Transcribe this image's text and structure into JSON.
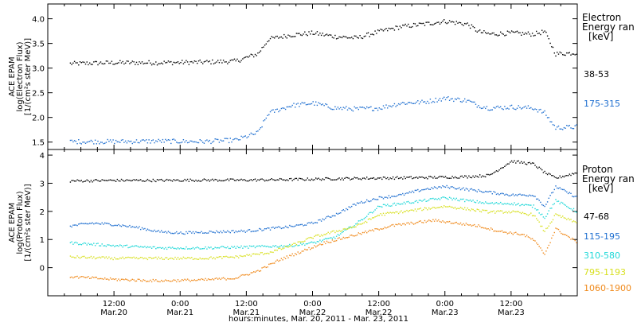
{
  "colors": {
    "black": "#000000",
    "blue": "#1f6fd0",
    "cyan": "#20d8d8",
    "yellow": "#d8e020",
    "orange": "#f08a1c"
  },
  "chart_data": [
    {
      "type": "scatter",
      "panel": "electron",
      "ylabel": [
        "ACE EPAM",
        "log(Electron Flux)",
        "[1/(cm²s ster MeV)]"
      ],
      "ylim": [
        1.35,
        4.3
      ],
      "y_ticks": [
        "1.5",
        "2.0",
        "2.5",
        "3.0",
        "3.5",
        "4.0"
      ],
      "legend_title": [
        "Electron",
        "Energy ran",
        "[keV]"
      ],
      "series": [
        {
          "name": "38-53",
          "color": "#000000",
          "points": [
            [
              -8,
              3.1
            ],
            [
              0,
              3.12
            ],
            [
              8,
              3.12
            ],
            [
              16,
              3.13
            ],
            [
              22,
              3.15
            ],
            [
              26,
              3.3
            ],
            [
              28,
              3.6
            ],
            [
              32,
              3.68
            ],
            [
              36,
              3.72
            ],
            [
              40,
              3.65
            ],
            [
              44,
              3.62
            ],
            [
              48,
              3.75
            ],
            [
              52,
              3.85
            ],
            [
              56,
              3.9
            ],
            [
              60,
              3.96
            ],
            [
              64,
              3.9
            ],
            [
              66,
              3.75
            ],
            [
              68,
              3.7
            ],
            [
              72,
              3.72
            ],
            [
              76,
              3.7
            ],
            [
              78,
              3.75
            ],
            [
              80,
              3.3
            ],
            [
              84,
              3.32
            ],
            [
              88,
              3.33
            ],
            [
              92,
              3.3
            ],
            [
              96,
              3.22
            ],
            [
              100,
              3.2
            ],
            [
              104,
              3.15
            ],
            [
              108,
              3.12
            ],
            [
              112,
              3.13
            ]
          ]
        },
        {
          "name": "175-315",
          "color": "#1f6fd0",
          "points": [
            [
              -8,
              1.52
            ],
            [
              0,
              1.52
            ],
            [
              8,
              1.53
            ],
            [
              16,
              1.52
            ],
            [
              22,
              1.55
            ],
            [
              26,
              1.7
            ],
            [
              28,
              2.1
            ],
            [
              32,
              2.25
            ],
            [
              36,
              2.3
            ],
            [
              40,
              2.2
            ],
            [
              44,
              2.18
            ],
            [
              48,
              2.2
            ],
            [
              52,
              2.3
            ],
            [
              56,
              2.32
            ],
            [
              60,
              2.4
            ],
            [
              64,
              2.35
            ],
            [
              66,
              2.25
            ],
            [
              68,
              2.2
            ],
            [
              72,
              2.22
            ],
            [
              76,
              2.2
            ],
            [
              78,
              2.1
            ],
            [
              80,
              1.8
            ],
            [
              84,
              1.82
            ],
            [
              88,
              1.8
            ],
            [
              92,
              1.72
            ],
            [
              96,
              1.7
            ],
            [
              100,
              1.68
            ],
            [
              104,
              1.65
            ],
            [
              108,
              1.62
            ],
            [
              112,
              1.6
            ]
          ]
        }
      ]
    },
    {
      "type": "scatter",
      "panel": "proton",
      "ylabel": [
        "ACE EPAM",
        "log(Proton Flux)",
        "[1/(cm²s ster MeV)]"
      ],
      "ylim": [
        -1.0,
        4.2
      ],
      "y_ticks": [
        "0",
        "1",
        "2",
        "3",
        "4"
      ],
      "legend_title": [
        "Proton",
        "Energy ran",
        "[keV]"
      ],
      "series": [
        {
          "name": "47-68",
          "color": "#000000",
          "points": [
            [
              -8,
              3.1
            ],
            [
              0,
              3.12
            ],
            [
              8,
              3.12
            ],
            [
              16,
              3.13
            ],
            [
              24,
              3.13
            ],
            [
              32,
              3.15
            ],
            [
              40,
              3.18
            ],
            [
              48,
              3.2
            ],
            [
              56,
              3.22
            ],
            [
              64,
              3.25
            ],
            [
              68,
              3.3
            ],
            [
              72,
              3.8
            ],
            [
              76,
              3.7
            ],
            [
              78,
              3.4
            ],
            [
              80,
              3.2
            ],
            [
              84,
              3.4
            ],
            [
              88,
              3.45
            ],
            [
              92,
              3.55
            ],
            [
              96,
              3.45
            ],
            [
              100,
              3.3
            ],
            [
              104,
              3.25
            ],
            [
              108,
              3.2
            ],
            [
              112,
              3.2
            ]
          ]
        },
        {
          "name": "115-195",
          "color": "#1f6fd0",
          "points": [
            [
              -8,
              1.5
            ],
            [
              -4,
              1.6
            ],
            [
              0,
              1.55
            ],
            [
              4,
              1.45
            ],
            [
              8,
              1.3
            ],
            [
              12,
              1.25
            ],
            [
              16,
              1.28
            ],
            [
              20,
              1.3
            ],
            [
              24,
              1.32
            ],
            [
              28,
              1.4
            ],
            [
              32,
              1.48
            ],
            [
              36,
              1.6
            ],
            [
              40,
              1.9
            ],
            [
              44,
              2.3
            ],
            [
              48,
              2.5
            ],
            [
              52,
              2.6
            ],
            [
              56,
              2.8
            ],
            [
              60,
              2.9
            ],
            [
              64,
              2.8
            ],
            [
              68,
              2.7
            ],
            [
              72,
              2.6
            ],
            [
              76,
              2.6
            ],
            [
              78,
              2.2
            ],
            [
              80,
              2.9
            ],
            [
              84,
              2.5
            ],
            [
              88,
              2.4
            ],
            [
              92,
              2.3
            ],
            [
              96,
              2.1
            ],
            [
              100,
              1.9
            ],
            [
              104,
              1.85
            ],
            [
              108,
              1.8
            ],
            [
              112,
              1.78
            ]
          ]
        },
        {
          "name": "310-580",
          "color": "#20d8d8",
          "points": [
            [
              -8,
              0.9
            ],
            [
              0,
              0.8
            ],
            [
              8,
              0.72
            ],
            [
              16,
              0.72
            ],
            [
              24,
              0.75
            ],
            [
              32,
              0.8
            ],
            [
              36,
              0.9
            ],
            [
              40,
              1.1
            ],
            [
              44,
              1.6
            ],
            [
              48,
              2.2
            ],
            [
              52,
              2.3
            ],
            [
              56,
              2.4
            ],
            [
              60,
              2.5
            ],
            [
              64,
              2.4
            ],
            [
              68,
              2.3
            ],
            [
              72,
              2.3
            ],
            [
              76,
              2.2
            ],
            [
              78,
              1.8
            ],
            [
              80,
              2.4
            ],
            [
              84,
              2.0
            ],
            [
              88,
              1.9
            ],
            [
              92,
              1.8
            ],
            [
              96,
              1.6
            ],
            [
              100,
              1.3
            ],
            [
              104,
              1.1
            ],
            [
              108,
              1.0
            ],
            [
              112,
              0.95
            ]
          ]
        },
        {
          "name": "795-1193",
          "color": "#d8e020",
          "points": [
            [
              -8,
              0.4
            ],
            [
              0,
              0.35
            ],
            [
              8,
              0.35
            ],
            [
              16,
              0.35
            ],
            [
              22,
              0.4
            ],
            [
              28,
              0.55
            ],
            [
              32,
              0.8
            ],
            [
              36,
              1.1
            ],
            [
              40,
              1.3
            ],
            [
              44,
              1.5
            ],
            [
              48,
              1.9
            ],
            [
              52,
              2.0
            ],
            [
              56,
              2.1
            ],
            [
              60,
              2.2
            ],
            [
              64,
              2.1
            ],
            [
              68,
              2.0
            ],
            [
              72,
              2.0
            ],
            [
              76,
              1.9
            ],
            [
              78,
              1.3
            ],
            [
              80,
              1.9
            ],
            [
              84,
              1.6
            ],
            [
              88,
              1.5
            ],
            [
              92,
              1.4
            ],
            [
              96,
              1.2
            ],
            [
              100,
              0.9
            ],
            [
              104,
              0.7
            ],
            [
              108,
              0.6
            ],
            [
              112,
              0.55
            ]
          ]
        },
        {
          "name": "1060-1900",
          "color": "#f08a1c",
          "points": [
            [
              -8,
              -0.3
            ],
            [
              -4,
              -0.35
            ],
            [
              0,
              -0.4
            ],
            [
              8,
              -0.45
            ],
            [
              16,
              -0.42
            ],
            [
              22,
              -0.35
            ],
            [
              26,
              -0.1
            ],
            [
              30,
              0.3
            ],
            [
              34,
              0.6
            ],
            [
              38,
              0.9
            ],
            [
              42,
              1.1
            ],
            [
              46,
              1.3
            ],
            [
              50,
              1.5
            ],
            [
              54,
              1.6
            ],
            [
              58,
              1.7
            ],
            [
              62,
              1.6
            ],
            [
              66,
              1.5
            ],
            [
              70,
              1.3
            ],
            [
              74,
              1.2
            ],
            [
              76,
              1.0
            ],
            [
              78,
              0.5
            ],
            [
              80,
              1.4
            ],
            [
              84,
              0.9
            ],
            [
              88,
              0.8
            ],
            [
              92,
              0.7
            ],
            [
              96,
              0.5
            ],
            [
              100,
              0.3
            ],
            [
              104,
              0.1
            ],
            [
              108,
              0.0
            ],
            [
              112,
              -0.05
            ]
          ]
        }
      ]
    }
  ],
  "x_axis": {
    "title": "hours:minutes, Mar. 20, 2011 - Mar. 23, 2011",
    "ticks": [
      {
        "hour": 0,
        "time": "12:00",
        "date": "Mar.20"
      },
      {
        "hour": 12,
        "time": "0:00",
        "date": "Mar.21"
      },
      {
        "hour": 24,
        "time": "12:00",
        "date": "Mar.21"
      },
      {
        "hour": 36,
        "time": "0:00",
        "date": "Mar.22"
      },
      {
        "hour": 48,
        "time": "12:00",
        "date": "Mar.22"
      },
      {
        "hour": 60,
        "time": "0:00",
        "date": "Mar.23"
      },
      {
        "hour": 72,
        "time": "12:00",
        "date": "Mar.23"
      }
    ]
  }
}
